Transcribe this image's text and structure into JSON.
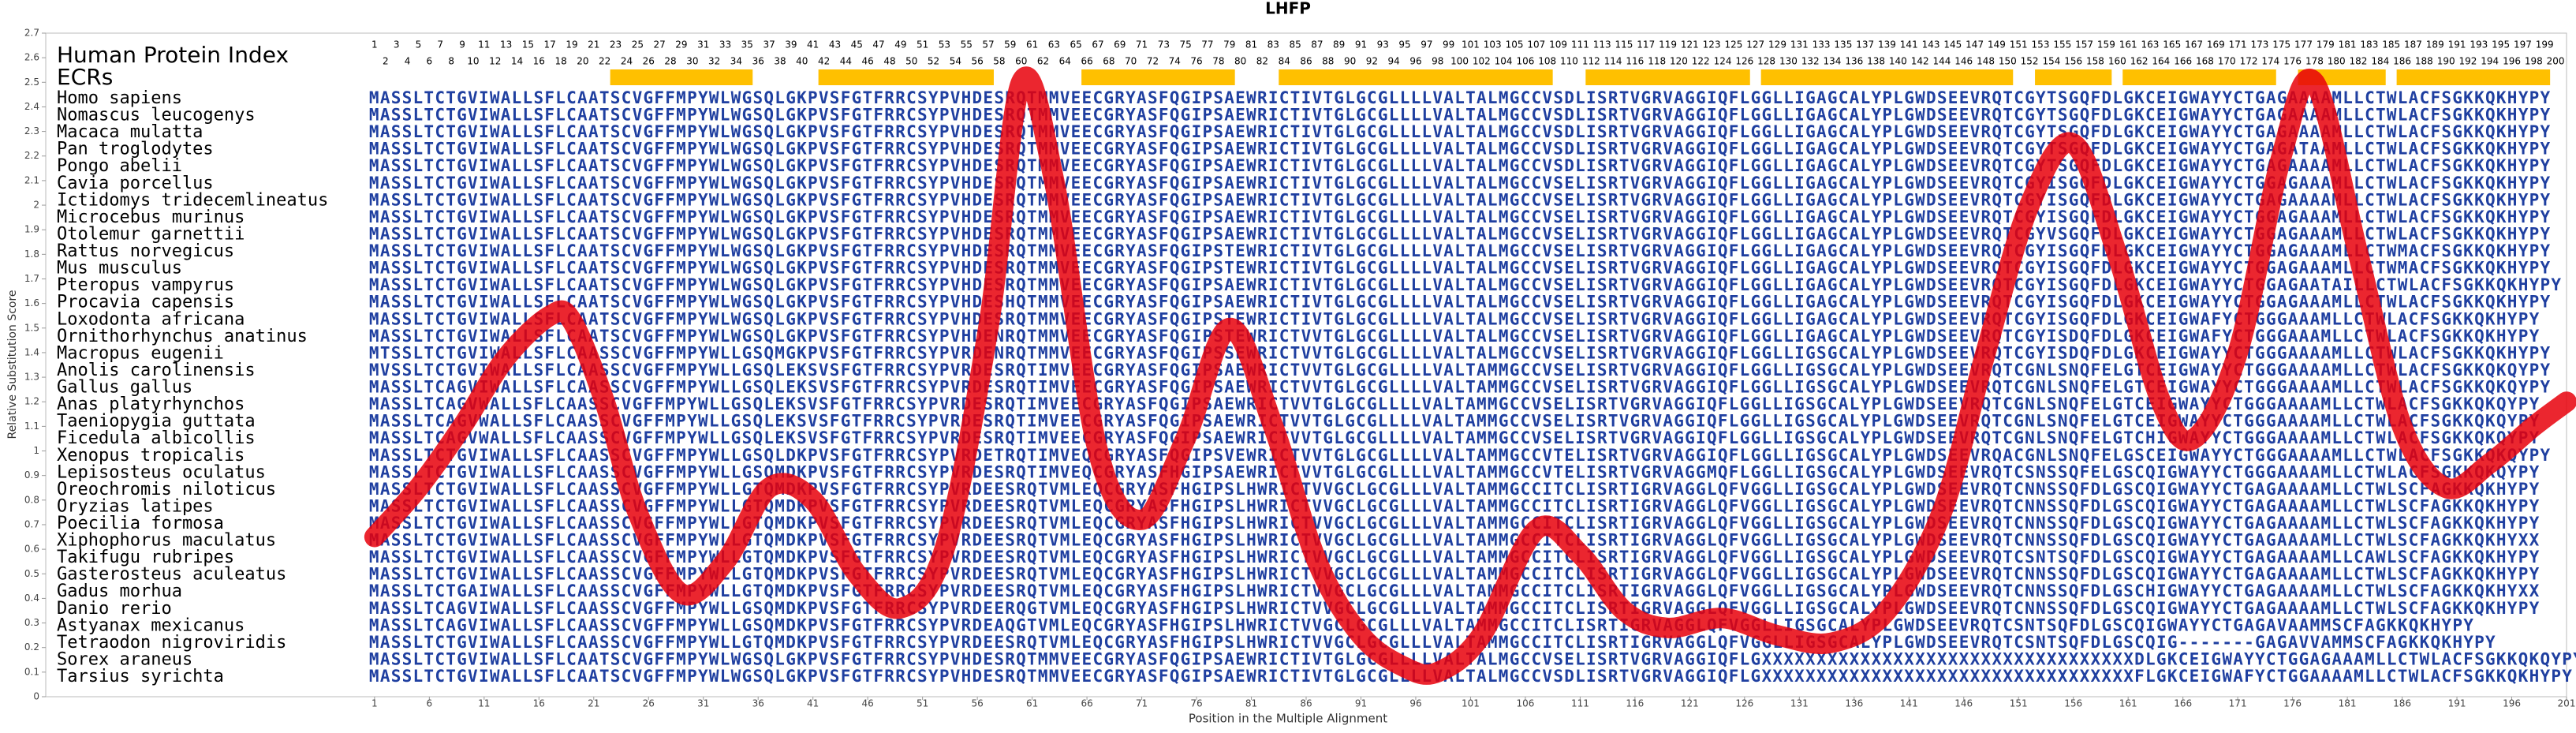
{
  "chart_data": {
    "type": "line",
    "title": "LHFP",
    "xlabel": "Position in the Multiple Alignment",
    "ylabel": "Relative Substitution Score",
    "xlim": [
      -29,
      201
    ],
    "xticks": [
      1,
      6,
      11,
      16,
      21,
      26,
      31,
      36,
      41,
      46,
      51,
      56,
      61,
      66,
      71,
      76,
      81,
      86,
      91,
      96,
      101,
      106,
      111,
      116,
      121,
      126,
      131,
      136,
      141,
      146,
      151,
      156,
      161,
      166,
      171,
      176,
      181,
      186,
      191,
      196,
      201
    ],
    "ylim": [
      0,
      2.7
    ],
    "yticks": [
      0,
      0.1,
      0.2,
      0.3,
      0.4,
      0.5,
      0.6,
      0.7,
      0.8,
      0.9,
      1,
      1.1,
      1.2,
      1.3,
      1.4,
      1.5,
      1.6,
      1.7,
      1.8,
      1.9,
      2,
      2.1,
      2.2,
      2.3,
      2.4,
      2.5,
      2.6,
      2.7
    ],
    "color": "#e8000b",
    "x": [
      1,
      5,
      9,
      13,
      17,
      19,
      22,
      25,
      29,
      33,
      37,
      41,
      45,
      49,
      53,
      57,
      60,
      63,
      67,
      71,
      75,
      79,
      83,
      87,
      91,
      95,
      98,
      102,
      107,
      111,
      115,
      119,
      124,
      129,
      134,
      139,
      144,
      148,
      152,
      156,
      160,
      164,
      167,
      171,
      175,
      178,
      182,
      186,
      190,
      194,
      198,
      201
    ],
    "values": [
      0.65,
      0.85,
      1.1,
      1.38,
      1.55,
      1.53,
      1.2,
      0.75,
      0.42,
      0.55,
      0.85,
      0.8,
      0.5,
      0.36,
      0.6,
      1.5,
      2.5,
      2.1,
      1.0,
      0.72,
      1.05,
      1.5,
      1.1,
      0.55,
      0.25,
      0.12,
      0.1,
      0.25,
      0.68,
      0.58,
      0.35,
      0.28,
      0.32,
      0.25,
      0.22,
      0.35,
      0.75,
      1.4,
      2.0,
      2.25,
      1.8,
      1.2,
      1.05,
      1.4,
      2.2,
      2.5,
      1.8,
      1.1,
      0.85,
      0.95,
      1.1,
      1.2
    ],
    "alignment": {
      "index_label": "Human Protein Index",
      "human_index": [
        1,
        2,
        3,
        4,
        5,
        6,
        7,
        8,
        9,
        10,
        11,
        12,
        13,
        14,
        15,
        16,
        17,
        18,
        19,
        20,
        21,
        22,
        23,
        24,
        25,
        26,
        27,
        28,
        29,
        30,
        31,
        32,
        33,
        34,
        35,
        36,
        37,
        38,
        39,
        40,
        41,
        42,
        43,
        44,
        45,
        46,
        47,
        48,
        49,
        50,
        51,
        52,
        53,
        54,
        55,
        56,
        57,
        58,
        59,
        60,
        61,
        62,
        63,
        64,
        65,
        66,
        67,
        68,
        69,
        70,
        71,
        72,
        73,
        74,
        75,
        76,
        77,
        78,
        79,
        80,
        81,
        82,
        83,
        84,
        85,
        86,
        87,
        88,
        89,
        90,
        91,
        92,
        93,
        94,
        95,
        96,
        97,
        98,
        99,
        100,
        101,
        102,
        103,
        104,
        105,
        106,
        107,
        108,
        109,
        110,
        111,
        112,
        113,
        114,
        115,
        116,
        117,
        118,
        119,
        120,
        121,
        122,
        123,
        124,
        125,
        126,
        127,
        128,
        129,
        130,
        131,
        132,
        133,
        134,
        135,
        136,
        137,
        138,
        139,
        140,
        141,
        142,
        143,
        144,
        145,
        146,
        147,
        148,
        149,
        150,
        151,
        152,
        153,
        154,
        155,
        156,
        157,
        158,
        159,
        160,
        161,
        162,
        163,
        164,
        165,
        166,
        167,
        168,
        169,
        170,
        171,
        172,
        173,
        174,
        175,
        176,
        177,
        178,
        179,
        180,
        181,
        182,
        183,
        184,
        185,
        186,
        187,
        188,
        189,
        190,
        191,
        192,
        193,
        194,
        195,
        196,
        197,
        198,
        199,
        200
      ],
      "ecr_label": "ECRs",
      "ecr_color": "#ffc000",
      "ecrs": [
        [
          23,
          35
        ],
        [
          42,
          57
        ],
        [
          66,
          79
        ],
        [
          84,
          108
        ],
        [
          112,
          126
        ],
        [
          128,
          150
        ],
        [
          153,
          159
        ],
        [
          161,
          174
        ],
        [
          177,
          184
        ],
        [
          186,
          199
        ]
      ],
      "sequence_color": "#1f3fa0",
      "rows": [
        {
          "species": "Homo sapiens",
          "sequence": "MASSLTCTGVIWALLSFLCAATSCVGFFMPYWLWGSQLGKPVSFGTFRRCSYPVHDESRQTMMVEECGRYASFQGIPSAEWRICTIVTGLGCGLLLLVALTALMGCCVSDLISRTVGRVAGGIQFLGGLLIGAGCALYPLGWDSEEVRQTCGYTSGQFDLGKCEIGWAYYCTGAGAAAAMLLCTWLACFSGKKQKHYPY"
        },
        {
          "species": "Nomascus leucogenys",
          "sequence": "MASSLTCTGVIWALLSFLCAATSCVGFFMPYWLWGSQLGKPVSFGTFRRCSYPVHDESRQTMMVEECGRYASFQGIPSAEWRICTIVTGLGCGLLLLVALTALMGCCVSDLISRTVGRVAGGIQFLGGLLIGAGCALYPLGWDSEEVRQTCGYTSGQFDLGKCEIGWAYYCTGAGAAAAMLLCTWLACFSGKKQKHYPY"
        },
        {
          "species": "Macaca mulatta",
          "sequence": "MASSLTCTGVIWALLSFLCAATSCVGFFMPYWLWGSQLGKPVSFGTFRRCSYPVHDESRQTMMVEECGRYASFQGIPSAEWRICTIVTGLGCGLLLLVALTALMGCCVSDLISRTVGRVAGGIQFLGGLLIGAGCALYPLGWDSEEVRQTCGYTSGQFDLGKCEIGWAYYCTGAGAAAAMLLCTWLACFSGKKQKHYPY"
        },
        {
          "species": "Pan troglodytes",
          "sequence": "MASSLTCTGVIWALLSFLCAATSCVGFFMPYWLWGSQLGKPVSFGTFRRCSYPVHDESRQTMMVEECGRYASFQGIPSAEWRICTIVTGLGCGLLLLVALTALMGCCVSDLISRTVGRVAGGIQFLGGLLIGAGCALYPLGWDSEEVRQTCGYTSGQFDLGKCEIGWAYYCTGAGATAAMLLCTWLACFSGKKQKHYPY"
        },
        {
          "species": "Pongo abelii",
          "sequence": "MASSLTCTGVIWALLSFLCAATSCVGFFMPYWLWGSQLGKPVSFGTFRRCSYPVHDESRQTMMVEECGRYASFQGIPSAEWRICTIVTGLGCGLLLLVALTALMGCCVSDLISRTVGRVAGGIQFLGGLLIGAGCALYPLGWDSEEVRQTCGYTSGQFDLGKCEIGWAYYCTGAGAAAAMLLCTWLACFSGKKQKHYPY"
        },
        {
          "species": "Cavia porcellus",
          "sequence": "MASSLTCTGVIWALLSFLCAATSCVGFFMPYWLWGSQLGKPVSFGTFRRCSYPVHDESRQTMMVEECGRYASFQGIPSAEWRICTIVTGLGCGLLLLVALTALMGCCVSELISRTVGRVAGGIQFLGGLLIGAGCALYPLGWDSEEVRQTCGYISGQFDLGKCEIGWAYYCTGGAGAAAMLLCTWLACFSGKKQKHYPY"
        },
        {
          "species": "Ictidomys tridecemlineatus",
          "sequence": "MASSLTCTGVIWALLSFLCAATSCVGFFMPYWLWGSQLGKPVSFGTFRRCSYPVHDESRQTMMVEECGRYASFQGIPSAEWRICTIVTGLGCGLLLLVALTALMGCCVSELISRTVGRVAGGIQFLGGLLIGAGCALYPLGWDSEEVRQTCGYISGQFDLGKCEIGWAYYCTGAGAAAAMLLCTWLACFSGKKQKHYPY"
        },
        {
          "species": "Microcebus murinus",
          "sequence": "MASSLTCTGVIWALLSFLCAATSCVGFFMPYWLWGSQLGKPVSFGTFRRCSYPVHDESRQTMMVEECGRYASFQGIPSAEWRICTIVTGLGCGLLLLVALTALMGCCVSELISRTVGRVAGGIQFLGGLLIGAGCALYPLGWDSEEVRQTCGYISGQFDLGKCEIGWAYYCTGGAGAAAMLLCTWLACFSGKKQKHYPY"
        },
        {
          "species": "Otolemur garnettii",
          "sequence": "MASSLTCTGVIWALLSFLCAATSCVGFFMPYWLWGSQLGKPVSFGTFRRCSYPVHDESRQTMMVEECGRYASFQGIPSAEWRICTIVTGLGCGLLLLVALTALMGCCVSELISRTVGRVAGGIQFLGGLLIGAGCALYPLGWDSEEVRQTCGYVSGQFDLGKCEIGWAYYCTGGAGAAAMLLCTWLACFSGKKQKHYPY"
        },
        {
          "species": "Rattus norvegicus",
          "sequence": "MASSLTCTGVIWALLSFLCAATSCVGFFMPYWLWGSQLGKPVSFGTFRRCSYPVHDESRQTMMVEECGRYASFQGIPSTEWRICTIVTGLGCGLLLLVALTALMGCCVSELISRTVGRVAGGIQFLGGLLIGAGCALYPLGWDSEEVRQTCGYISGQFDLGKCEIGWAYYCTGGAGAAAMLLCTWMACFSGKKQKHYPY"
        },
        {
          "species": "Mus musculus",
          "sequence": "MASSLTCTGVIWALLSFLCAATSCVGFFMPYWLWGSQLGKPVSFGTFRRCSYPVHDESRQTMMVEECGRYASFQGIPSTEWRICTIVTGLGCGLLLLVALTALMGCCVSELISRTVGRVAGGIQFLGGLLIGAGCALYPLGWDSEEVRQTCGYISGQFDLGKCEIGWAYYCTGGAGAAAMLLCTWMACFSGKKQKHYPY"
        },
        {
          "species": "Pteropus vampyrus",
          "sequence": "MASSLTCTGVIWALLSFLCAATSCVGFFMPYWLWGSQLGKPVSFGTFRRCSYPVHDESRQTMMVEECGRYASFQGIPSAEWRICTIVTGLGCGLLLLVALTALMGCCVSELISRTVGRVAGGIQFLGGLLIGAGCALYPLGWDSEEVRQTCGYISGQFDLGKCEIGWAYYCTGGAGAATAILLCTWLACFSGKKQKHYPY"
        },
        {
          "species": "Procavia capensis",
          "sequence": "MASSLTCTGVIWALLSFLCAATSCVGFFMPYWLWGSQLGKPVSFGTFRRCSYPVHDESHQTMMVEECGRYASFQGIPSAEWRICTIVTGLGCGLLLLVALTALMGCCVSELISRTVGRVAGGIQFLGGLLIGAGCALYPLGWDSEEVRQTCGYISGQFDLGKCEIGWAYYCTGGAGAAAMLLCTWLACFSGKKQKHYPY"
        },
        {
          "species": "Loxodonta africana",
          "sequence": "MASSLTCTGVIWALLSFLCAATSCVGFFMPYWLWGSQLGKPVSFGTFRRCSYPVHDESRQTMMVEECGRYASFQGIPSTEWRICTIVTGLGCGLLLLVALTALMGCCVSELISRTVGRVAGGIQFLGGLLIGAGCALYPLGWDSEEVRQTCGYISGQFDLGKCEIGWAFYCTGGGAAAMLLCTWLACFSGKKQKHYPY"
        },
        {
          "species": "Ornithorhynchus anatinus",
          "sequence": "MASSLTCTGVIWALLSFLCAATSCVGFFMPYWLWGSQLGKPVSFGTFRRCSYPVHDENRQTMMVEECGRYASFQGIPSTEWRICTVVTGLGCGLLLLVALTALMGCCVSELISRTVGRVAGGIQFLGGLLIGAGCALYPLGWDSEEVRQTCGYISDQFDLGKCEIGWAFYCTGGGAAAMLLCTWLACFSGKKQKHYPY"
        },
        {
          "species": "Macropus eugenii",
          "sequence": "MTSSLTCTGVIWALLSFLCAASSCVGFFMPYWLLGSQMGKPVSFGTFRRCSYPVRDENRQTMMVEECGRYASFQGIPSSEWRICTVVTGLGCGLLLLVALTALMGCCVSELISRTVGRVAGGIQFLGGLLIGSGCALYPLGWDSEEVRQTCGYISDQFDLGKCEIGWAYYCTGGGAAAAMLLCTWLACFSGKKQKHYPY"
        },
        {
          "species": "Anolis carolinensis",
          "sequence": "MVSSLTCTGVIWALLSFLCAASSCVGFFMPYWLLGSQLEKSVSFGTFRRCSYPVRDESRQTIMVEECGRYASFQGIPSAEWRICTVVTGLGCGLLLLVALTAMMGCCVSELISRTVGRVAGGIQFLGGLLIGSGCALYPLGWDSEEVRQTCGNLSNQFELGTCEIGWAYYCTGGGAAAAMLLCTWLACFSGKKQKQYPY"
        },
        {
          "species": "Gallus gallus",
          "sequence": "MASSLTCAGVIWALLSFLCAASSCVGFFMPYWLLGSQLEKSVSFGTFRRCSYPVRDESRQTIMVEECGRYASFQGIPSAEWRICTVVTGLGCGLLLLVALTAMMGCCVSELISRTVGRVAGGIQFLGGLLIGSGCALYPLGWDSEEVRQTCGNLSNQFELGTCEIGWAYYCTGGGAAAAMLLCTWLACFSGKKQKQYPY"
        },
        {
          "species": "Anas platyrhynchos",
          "sequence": "MASSLTCAGVWALLSFLCAASSCVGFFMPYWLLGSQLEKSVSFGTFRRCSYPVRDESRQTIMVEECGRYASFQGIPSAEWRICTVVTGLGCGLLLLVALTAMMGCCVSELISRTVGRVAGGIQFLGGLLIGSGCALYPLGWDSEEVRQTCGNLSNQFELGTCEIGWAYYCTGGGAAAAMLLCTWLACFSGKKQKQYPY"
        },
        {
          "species": "Taeniopygia guttata",
          "sequence": "MASSLTCAGVWALLSFLCAASSCVGFFMPYWLLGSQLEKSVSFGTFRRCSYPVRDESRQTIMVEECGRYASFQGIPSAEWRICTVVTGLGCGLLLLVALTAMMGCCVSELISRTVGRVAGGIQFLGGLLIGSGCALYPLGWDSEEVRQTCGNLSNQFELGTCEIGWAYYCTGGGAAAAMLLCTWLACFSGKKQKQYPY"
        },
        {
          "species": "Ficedula albicollis",
          "sequence": "MASSLTCAGVWALLSFLCAASSCVGFFMPYWLLGSQLEKSVSFGTFRRCSYPVRDESRQTIMVEECGRYASFQGIPSAEWRICTVVTGLGCGLLLLVALTAMMGCCVSELISRTVGRVAGGIQFLGGLLIGSGCALYPLGWDSEEVRQTCGNLSNQFELGTCHIGWAYYCTGGGAAAAMLLCTWLACFSGKKQKQYPY"
        },
        {
          "species": "Xenopus tropicalis",
          "sequence": "MASSLTCTGVIWALLSFLCAASSCVGFFMPYWLLGSQLDKPVSFGTFRRCSYPVRDETRQTIMVEQCGRYASFQGIPSVEWRICTVVTGLGCGLLLLVALTAMMGCCVTELISRTVGRVAGGIQFLGGLLIGSGCALYPLGWDSEEVRQACGNLSNQFELGSCEIGWAYYCTGGGAAAAMLLCTWLACFSGKKQKQYPY"
        },
        {
          "species": "Lepisosteus oculatus",
          "sequence": "MASSLTCTGVIWALLSFLCAASSCVGFFMPYWLLGSQMDKPVSFGTFRRCSYPVRDESRQTIMVEQCGRYASFHGIPSAEWRICTVVTGLGCGLLLLVALTAMMGCCVTELISRTVGRVAGGMQFLGGLLIGSGCALYPLGWDSEEVRQTCSNSSQFELGSCQIGWAYYCTGGGAAAAMLLCTWLACFSGKKQKQYPY"
        },
        {
          "species": "Oreochromis niloticus",
          "sequence": "MASSLTCTGVIWALLSFLCAASSCVGFFMPYWLLGTQMDKPVSFGTFRRCSYPVRDEESRQTVMLEQCGRYASFHGIPSLHWRICTVVGCLGCGLLLVALTAMMGCCITCLISRTIGRVAGGLQFVGGLLIGSGCALYPLGWDSEEVRQTCNNSSQFDLGSCQIGWAYYCTGAGAAAAMLLCTWLSCFAGKKQKHYPY"
        },
        {
          "species": "Oryzias latipes",
          "sequence": "MASSLTCTGVIWALLSFLCAASSCVGFFMPYWLLGTQMDKPVSFGTFRRCSYPVRDEESRQTVMLEQCGRYASFHGIPSLHWRICTVVGCLGCGLLLVALTAMMGCCITCLISRTIGRVAGGLQFVGGLLIGSGCALYPLGWDSEEVRQTCNNSSQFDLGSCQIGWAYYCTGAGAAAAMLLCTWLSCFAGKKQKHYPY"
        },
        {
          "species": "Poecilia formosa",
          "sequence": "MASSLTCTGVIWALLSFLCAASSCVGFFMPYWLLGTQMDKPVSFGTFRRCSYPVRDEESRQTVMLEQCGRYASFHGIPSLHWRICTVVGCLGCGLLLVALTAMMGCCITCLISRTIGRVAGGLQFVGGLLIGSGCALYPLGWDSEEVRQTCNNSSQFDLGSCQIGWAYYCTGAGAAAAMLLCTWLSCFAGKKQKHYPY"
        },
        {
          "species": "Xiphophorus maculatus",
          "sequence": "MASSLTCTGVIWALLSFLCAASSCVGFFMPYWLLGTQMDKPVSFGTFRRCSYPVRDEESRQTVMLEQCGRYASFHGIPSLHWRICTVVGCLGCGLLLVALTAMMGCCITCLISRTIGRVAGGLQFVGGLLIGSGCALYPLGWDSEEVRQTCNNSSQFDLGSCQIGWAYYCTGAGAAAAMLLCTWLSCFAGKKQKHYXX"
        },
        {
          "species": "Takifugu rubripes",
          "sequence": "MASSLTCTGVIWALLSFLCAASSCVGFFMPYWLLGTQMDKPVSFGTFRRCSYPVRDEESRQTVMLEQCGRYASFHGIPSLHWRICTVVGCLGCGLLLVALTAMMGCCITCLISRTIGRVAGGLQFVGGLLIGSGCALYPLGWDSEEVRQTCSNTSQFDLGSCQIGWAYYCTGAGAAAAMLLCAWLSCFAGKKQKHYPY"
        },
        {
          "species": "Gasterosteus aculeatus",
          "sequence": "MASSLTCTGVIWALLSFLCAASSCVGFFMPYWLLGTQMDKPVSFGTFRRCSYPVRDEESRQTVMLEQCGRYASFHGIPSLHWRICTVVGCLGCGLLLVALTAMMGCCITCLISRTIGRVAGGLQFVGGLLIGSGCALYPLGWDSEEVRQTCNNSSQFDLGSCQIGWAYYCTGAGAAAAMLLCTWLSCFAGKKQKHYPY"
        },
        {
          "species": "Gadus morhua",
          "sequence": "MASSLTCTGAIWALLSFLCAASSCVGFFMPYWLLGTQMDKPVSFGTFRRCSYPVRDEESRQTVMLEQCGRYASFHGIPSLHWRICTVVGCLGCGLLLVALTAMMGCCITCLISRTIGRVAGGLQFVGGLLIGSGCALYPLGWDSEEVRQTCNNSSQFDLGSCHIGWAYYCTGAGAAAAMLLCTWLSCFAGKKQKHYXX"
        },
        {
          "species": "Danio rerio",
          "sequence": "MASSLTCAGVIWALLSFLCAASSCVGFFMPYWLLGSQMDKPVSFGTFRRCSYPVRDEERQGTVMLEQCGRYASFHGIPSLHWRICTVVGCLGCGLLLVALTAMMGCCITCLISRTIGRVAGGLQFVGGLLIGSGCALYPLGWDSEEVRQTCNNSSQFDLGSCQIGWAYYCTGAGAAAAMLLCTWLSCFAGKKQKHYPY"
        },
        {
          "species": "Astyanax mexicanus",
          "sequence": "MASSLTCAGVIWALLSFLCAASSCVGFFMPYWLLGSQMDKPVSFGTFRRCSYPVRDEAQGTVMLEQCGRYASFHGIPSLHWRICTVVGCLGCGLLLVALTAMMGCCITCLISRTIGRVAGGLQFVGGLLIGSGCALYPLGWDSEEVRQTCSNTSQFDLGSCQIGWAYYCTGAGAVAAMMSCFAGKKQKHYPY"
        },
        {
          "species": "Tetraodon nigroviridis",
          "sequence": "MASSLTCTGVIWALLSFLCAASSCVGFFMPYWLLGTQMDKPVSFGTFRRCSYPVRDEESRQTVMLEQCGRYASFHGIPSLHWRICTVVGCLGCGLLLVALTAMMGCCITCLISRTIGRVAGGLQFVGGLLIGSGCALYPLGWDSEEVRQTCSNTSQFDLGSCQIG-------GAGAVVAMMSCFAGKKQKHYPY"
        },
        {
          "species": "Sorex araneus",
          "sequence": "MASSLTCTGVIWALLSFLCAATSCVGFFMPYWLWGSQLGKPVSFGTFRRCSYPVHDESRQTMMVEECGRYASFQGIPSAEWRICTIVTGLGCGLLLLVALTALMGCCVSELISRTVGRVAGGIQFLGXXXXXXXXXXXXXXXXXXXXXXXXXXXXXXXXXXDLGKCEIGWAYYCTGGAGAAAMLLCTWLACFSGKKQKQYPY"
        },
        {
          "species": "Tarsius syrichta",
          "sequence": "MASSLTCTGVIWALLSFLCAATSCVGFFMPYWLWGSQLGKPVSFGTFRRCSYPVHDESRQTMMVEECGRYASFQGIPSAEWRICTIVTGLGCGLLLLVALTALMGCCVSDLISRTVGRVAGGIQFLGXXXXXXXXXXXXXXXXXXXXXXXXXXXXXXXXXXFLGKCEIGWAFYCTGGAAAAMLLCTWLACFSGKKQKHYPY"
        }
      ]
    }
  }
}
